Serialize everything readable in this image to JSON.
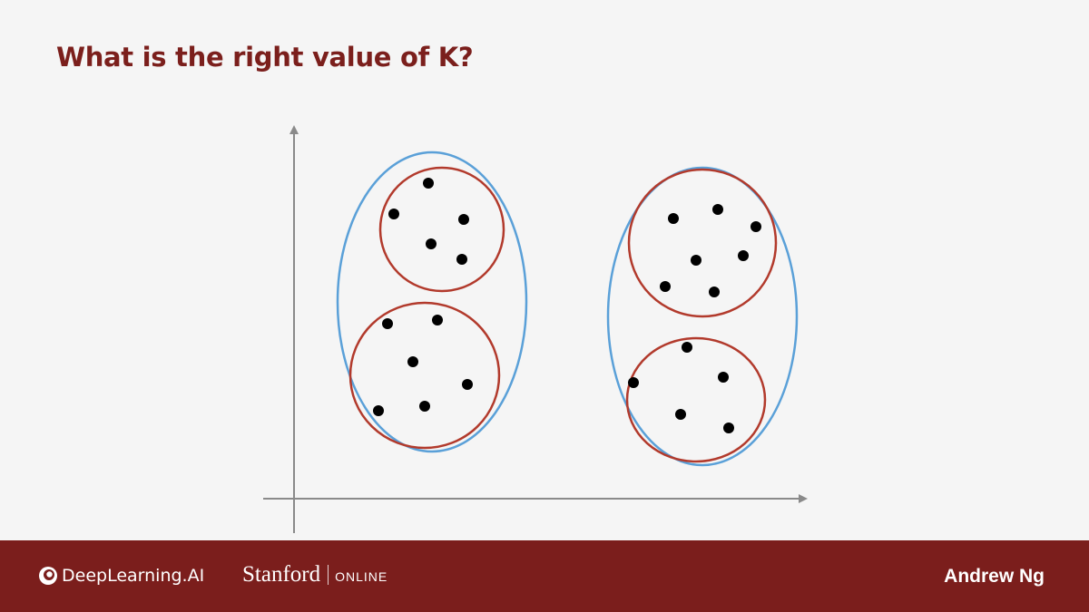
{
  "slide": {
    "title": "What is the right value of K?"
  },
  "diagram": {
    "colors": {
      "axis": "#8a8a8a",
      "outer_cluster": "#5aa0d8",
      "inner_cluster": "#b23a2c",
      "point": "#000000"
    },
    "axes": {
      "x_axis_arrow": true,
      "y_axis_arrow": true,
      "tick_labels": false
    },
    "outer_clusters": [
      "left-group",
      "right-group"
    ],
    "inner_clusters": [
      "left-top",
      "left-bottom",
      "right-top",
      "right-bottom"
    ],
    "point_counts": {
      "left-top": 5,
      "left-bottom": 6,
      "right-top": 7,
      "right-bottom": 5
    }
  },
  "footer": {
    "logo_left_text": "DeepLearning.AI",
    "logo_stanford_text": "Stanford",
    "logo_online_text": "ONLINE",
    "presenter": "Andrew Ng",
    "background": "#7b1e1c"
  }
}
